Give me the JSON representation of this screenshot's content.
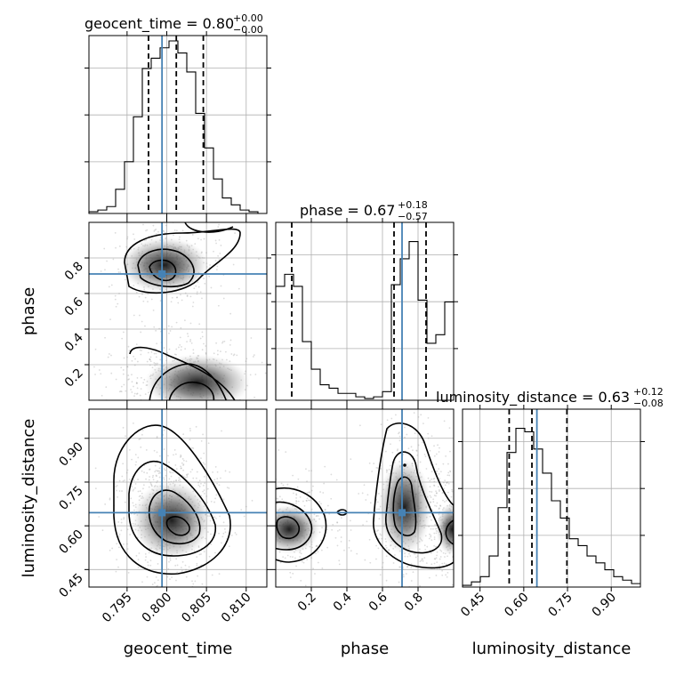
{
  "chart_data": {
    "type": "corner",
    "parameters": [
      "geocent_time",
      "phase",
      "luminosity_distance"
    ],
    "ranges": {
      "geocent_time": [
        0.7902,
        0.8126
      ],
      "phase": [
        0.0,
        1.0
      ],
      "luminosity_distance": [
        0.39,
        1.0
      ]
    },
    "truths": {
      "geocent_time": 0.7994,
      "phase": 0.71,
      "luminosity_distance": 0.645
    },
    "quantiles": {
      "geocent_time": [
        0.7977,
        0.8012,
        0.8046
      ],
      "phase": [
        0.09,
        0.665,
        0.845
      ],
      "luminosity_distance": [
        0.55,
        0.628,
        0.748
      ]
    },
    "titles": {
      "geocent_time": {
        "main": "geocent_time = 0.80",
        "plus": "+0.00",
        "minus": "−0.00"
      },
      "phase": {
        "main": "phase = 0.67",
        "plus": "+0.18",
        "minus": "−0.57"
      },
      "luminosity_distance": {
        "main": "luminosity_distance = 0.63",
        "plus": "+0.12",
        "minus": "−0.08"
      }
    },
    "ticks": {
      "geocent_time": {
        "values": [
          0.795,
          0.8,
          0.805,
          0.81
        ],
        "labels": [
          "0.795",
          "0.800",
          "0.805",
          "0.810"
        ]
      },
      "phase": {
        "values": [
          0.2,
          0.4,
          0.6,
          0.8
        ],
        "labels": [
          "0.2",
          "0.4",
          "0.6",
          "0.8"
        ]
      },
      "luminosity_distance": {
        "values": [
          0.45,
          0.6,
          0.75,
          0.9
        ],
        "labels": [
          "0.45",
          "0.60",
          "0.75",
          "0.90"
        ]
      }
    },
    "histograms": {
      "geocent_time": {
        "edges": [
          0.7902,
          0.79132,
          0.79244,
          0.79356,
          0.79468,
          0.7958,
          0.79692,
          0.79804,
          0.79916,
          0.80028,
          0.8014,
          0.80252,
          0.80364,
          0.80476,
          0.80588,
          0.807,
          0.80812,
          0.80924,
          0.81036,
          0.81148,
          0.8126
        ],
        "values": [
          0.01,
          0.02,
          0.04,
          0.14,
          0.3,
          0.56,
          0.84,
          0.9,
          0.96,
          1.0,
          0.93,
          0.82,
          0.58,
          0.38,
          0.2,
          0.09,
          0.05,
          0.02,
          0.01,
          0.0
        ]
      },
      "phase": {
        "edges": [
          0.0,
          0.05,
          0.1,
          0.15,
          0.2,
          0.25,
          0.3,
          0.35,
          0.4,
          0.45,
          0.5,
          0.55,
          0.6,
          0.65,
          0.7,
          0.75,
          0.8,
          0.85,
          0.9,
          0.95,
          1.0
        ],
        "values": [
          0.66,
          0.73,
          0.66,
          0.34,
          0.18,
          0.09,
          0.07,
          0.04,
          0.04,
          0.02,
          0.01,
          0.02,
          0.05,
          0.67,
          0.82,
          0.92,
          0.58,
          0.33,
          0.38,
          0.57
        ]
      },
      "luminosity_distance": {
        "edges": [
          0.39,
          0.4205,
          0.451,
          0.4815,
          0.512,
          0.5425,
          0.573,
          0.6035,
          0.634,
          0.6645,
          0.695,
          0.7255,
          0.756,
          0.7865,
          0.817,
          0.8475,
          0.878,
          0.9085,
          0.939,
          0.9695,
          1.0
        ],
        "values": [
          0.01,
          0.03,
          0.06,
          0.18,
          0.46,
          0.78,
          0.92,
          0.9,
          0.8,
          0.66,
          0.5,
          0.4,
          0.28,
          0.24,
          0.18,
          0.14,
          0.1,
          0.06,
          0.04,
          0.02
        ]
      }
    }
  }
}
